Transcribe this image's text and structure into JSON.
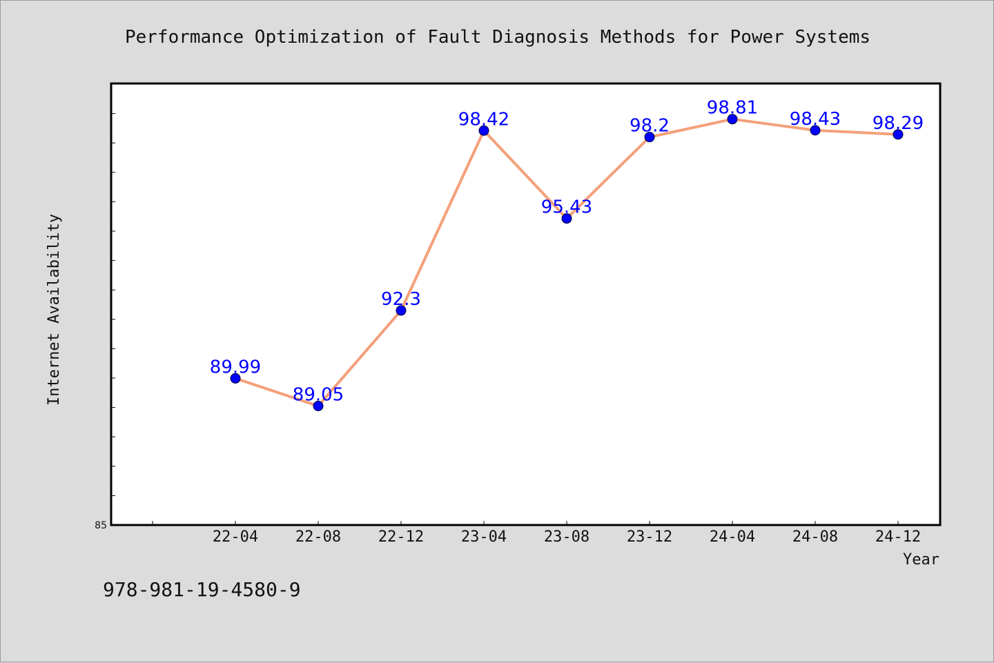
{
  "chart_data": {
    "type": "line",
    "title": "Performance Optimization of Fault Diagnosis Methods for Power Systems",
    "xlabel": "Year",
    "ylabel": "Internet Availability",
    "categories": [
      "22-04",
      "22-08",
      "22-12",
      "23-04",
      "23-08",
      "23-12",
      "24-04",
      "24-08",
      "24-12"
    ],
    "series": [
      {
        "values": [
          89.99,
          89.05,
          92.3,
          98.42,
          95.43,
          98.2,
          98.81,
          98.43,
          98.29
        ]
      }
    ],
    "data_labels": [
      "89.99",
      "89.05",
      "92.3",
      "98.42",
      "95.43",
      "98.2",
      "98.81",
      "98.43",
      "98.29"
    ],
    "ylim": [
      85,
      100
    ],
    "ytick_labels": [
      "85"
    ],
    "grid": false,
    "legend": "none",
    "colors": {
      "line": "#f4a07a",
      "marker": "#0000ff",
      "label": "#0000ff",
      "plot_bg": "#ffffff",
      "page_bg": "#dcdcdc"
    }
  },
  "footer": {
    "isbn": "978-981-19-4580-9"
  }
}
